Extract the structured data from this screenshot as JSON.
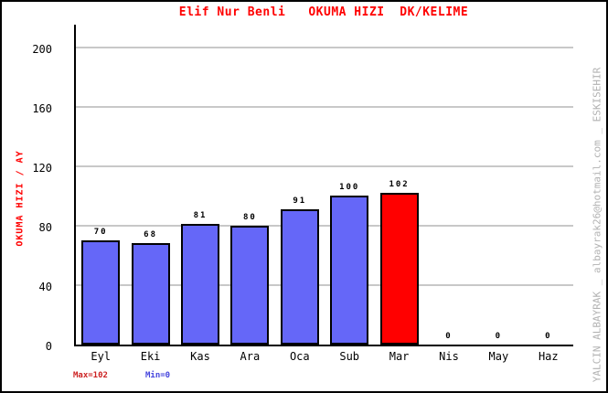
{
  "title": "Elif Nur Benli   OKUMA HIZI  DK/KELIME",
  "y_axis_label": "OKUMA HIZI / AY",
  "watermark": "YALCIN ALBAYRAK _ albayrak26@hotmail.com _ ESKISEHIR",
  "annotations": {
    "max": "Max=102",
    "min": "Min=0"
  },
  "colors": {
    "title": "#FF0000",
    "y_axis_label": "#FF0000",
    "bar_default": "#6567F8",
    "bar_highlight": "#FF0000",
    "gridline": "#C8C8C8",
    "axis": "#000000",
    "max_annotation": "#CC2222",
    "min_annotation": "#4444DD",
    "watermark": "#B2B2B2",
    "background": "#FFFFFF"
  },
  "chart_data": {
    "type": "bar",
    "title": "Elif Nur Benli   OKUMA HIZI  DK/KELIME",
    "categories": [
      "Eyl",
      "Eki",
      "Kas",
      "Ara",
      "Oca",
      "Sub",
      "Mar",
      "Nis",
      "May",
      "Haz"
    ],
    "values": [
      70,
      68,
      81,
      80,
      91,
      100,
      102,
      0,
      0,
      0
    ],
    "highlight_index": 6,
    "xlabel": "",
    "ylabel": "OKUMA HIZI / AY",
    "ylim": [
      0,
      200
    ],
    "yticks": [
      0,
      40,
      80,
      120,
      160,
      200
    ],
    "grid": true,
    "legend": false,
    "max_value": 102,
    "min_value": 0
  }
}
